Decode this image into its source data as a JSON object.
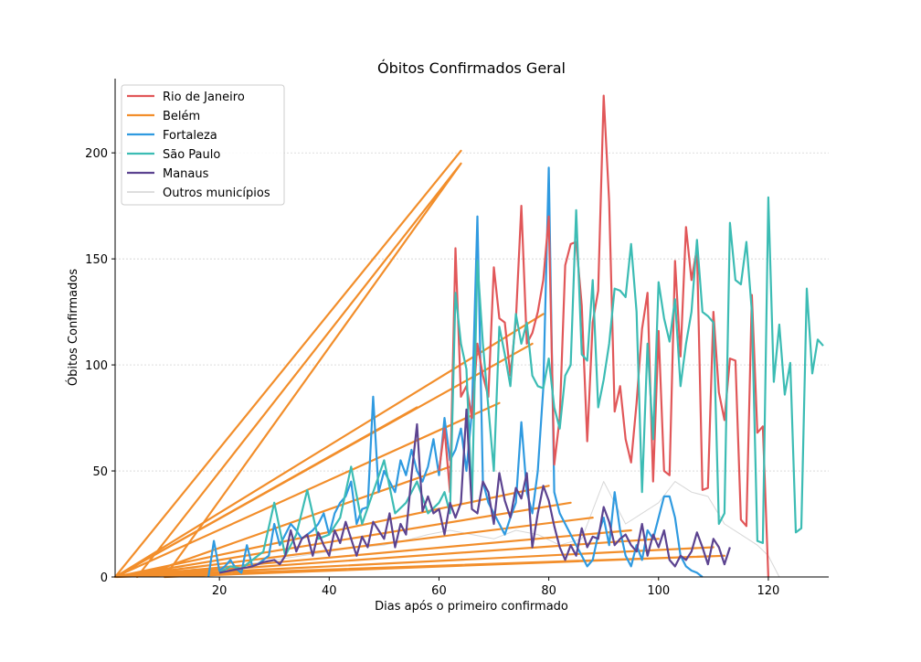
{
  "chart_data": {
    "type": "line",
    "title": "Óbitos Confirmados Geral",
    "xlabel": "Dias após o primeiro confirmado",
    "ylabel": "Óbitos Confirmados",
    "xlim": [
      1,
      131
    ],
    "ylim": [
      0,
      235
    ],
    "xticks": [
      20,
      40,
      60,
      80,
      100,
      120
    ],
    "yticks": [
      0,
      50,
      100,
      150,
      200
    ],
    "grid": "horizontal dotted",
    "legend_position": "top-left",
    "colors": {
      "Rio de Janeiro": "#e15759",
      "Belém": "#f28e2b",
      "Fortaleza": "#2f9ae0",
      "São Paulo": "#3cbcb4",
      "Manaus": "#5c4390",
      "Outros municípios": "#d3d3d3"
    },
    "legend": [
      "Rio de Janeiro",
      "Belém",
      "Fortaleza",
      "São Paulo",
      "Manaus",
      "Outros municípios"
    ],
    "series": [
      {
        "name": "Outros municípios",
        "x": [
          10,
          20,
          25,
          30,
          35,
          40,
          45,
          50,
          55,
          58,
          62,
          66,
          70,
          74,
          78,
          82,
          86,
          90,
          94,
          97,
          100,
          103,
          106,
          109,
          112,
          115,
          118,
          120,
          122
        ],
        "y": [
          5,
          3,
          6,
          8,
          10,
          12,
          14,
          15,
          18,
          20,
          22,
          20,
          18,
          22,
          20,
          15,
          18,
          45,
          25,
          30,
          35,
          45,
          40,
          38,
          25,
          20,
          15,
          10,
          0
        ]
      },
      {
        "name": "Rio de Janeiro",
        "x": [
          60,
          61,
          62,
          63,
          64,
          65,
          66,
          67,
          68,
          69,
          70,
          71,
          72,
          73,
          74,
          75,
          76,
          77,
          78,
          79,
          80,
          81,
          82,
          83,
          84,
          85,
          86,
          87,
          88,
          89,
          90,
          91,
          92,
          93,
          94,
          95,
          96,
          97,
          98,
          99,
          100,
          101,
          102,
          103,
          104,
          105,
          106,
          107,
          108,
          109,
          110,
          111,
          112,
          113,
          114,
          115,
          116,
          117,
          118,
          119,
          120
        ],
        "y": [
          50,
          70,
          40,
          155,
          85,
          90,
          75,
          110,
          95,
          85,
          146,
          122,
          120,
          95,
          121,
          175,
          110,
          115,
          125,
          140,
          170,
          53,
          75,
          147,
          157,
          158,
          128,
          64,
          120,
          135,
          227,
          177,
          78,
          90,
          65,
          54,
          82,
          117,
          134,
          45,
          116,
          50,
          48,
          149,
          104,
          165,
          140,
          155,
          41,
          42,
          125,
          87,
          74,
          103,
          102,
          27,
          24,
          133,
          68,
          71,
          0
        ]
      },
      {
        "name": "São Paulo",
        "x": [
          20,
          22,
          24,
          26,
          28,
          30,
          32,
          34,
          36,
          38,
          40,
          42,
          44,
          46,
          48,
          50,
          52,
          54,
          56,
          58,
          60,
          61,
          62,
          63,
          64,
          65,
          66,
          67,
          68,
          69,
          70,
          71,
          72,
          73,
          74,
          75,
          76,
          77,
          78,
          79,
          80,
          81,
          82,
          83,
          84,
          85,
          86,
          87,
          88,
          89,
          90,
          91,
          92,
          93,
          94,
          95,
          96,
          97,
          98,
          99,
          100,
          101,
          102,
          103,
          104,
          105,
          106,
          107,
          108,
          109,
          110,
          111,
          112,
          113,
          114,
          115,
          116,
          117,
          118,
          119,
          120,
          121,
          122,
          123,
          124,
          125,
          126,
          127,
          128,
          129,
          130
        ],
        "y": [
          2,
          5,
          4,
          8,
          12,
          35,
          10,
          20,
          41,
          18,
          20,
          28,
          52,
          25,
          40,
          55,
          30,
          35,
          45,
          30,
          35,
          40,
          30,
          134,
          110,
          98,
          35,
          149,
          110,
          80,
          50,
          118,
          105,
          90,
          124,
          110,
          120,
          95,
          90,
          89,
          103,
          80,
          70,
          95,
          100,
          173,
          105,
          102,
          140,
          80,
          93,
          110,
          136,
          135,
          132,
          157,
          125,
          40,
          110,
          65,
          139,
          122,
          111,
          131,
          90,
          110,
          125,
          159,
          125,
          123,
          120,
          25,
          30,
          167,
          140,
          138,
          158,
          125,
          17,
          16,
          179,
          92,
          119,
          86,
          101,
          21,
          23,
          136,
          96,
          112,
          109
        ]
      },
      {
        "name": "Fortaleza",
        "x": [
          18,
          19,
          20,
          21,
          22,
          23,
          24,
          25,
          26,
          27,
          28,
          29,
          30,
          31,
          32,
          33,
          34,
          35,
          36,
          37,
          38,
          39,
          40,
          41,
          42,
          43,
          44,
          45,
          46,
          47,
          48,
          49,
          50,
          51,
          52,
          53,
          54,
          55,
          56,
          57,
          58,
          59,
          60,
          61,
          62,
          63,
          64,
          65,
          66,
          67,
          68,
          69,
          70,
          71,
          72,
          73,
          74,
          75,
          76,
          77,
          78,
          79,
          80,
          81,
          82,
          83,
          84,
          85,
          86,
          87,
          88,
          89,
          90,
          91,
          92,
          93,
          94,
          95,
          96,
          97,
          98,
          99,
          100,
          101,
          102,
          103,
          104,
          105,
          106,
          107,
          108
        ],
        "y": [
          0,
          17,
          3,
          5,
          8,
          4,
          2,
          15,
          5,
          6,
          8,
          10,
          25,
          15,
          20,
          25,
          22,
          18,
          20,
          22,
          25,
          30,
          20,
          30,
          35,
          38,
          45,
          25,
          32,
          33,
          85,
          40,
          50,
          45,
          40,
          55,
          48,
          60,
          50,
          45,
          52,
          65,
          48,
          75,
          55,
          60,
          70,
          50,
          78,
          170,
          45,
          35,
          30,
          25,
          20,
          28,
          35,
          73,
          40,
          30,
          50,
          89,
          193,
          40,
          30,
          25,
          20,
          15,
          10,
          5,
          8,
          20,
          28,
          15,
          40,
          22,
          10,
          5,
          15,
          8,
          22,
          18,
          28,
          38,
          38,
          28,
          10,
          5,
          3,
          2,
          0
        ]
      },
      {
        "name": "Manaus",
        "x": [
          20,
          22,
          24,
          26,
          28,
          30,
          31,
          32,
          33,
          34,
          35,
          36,
          37,
          38,
          39,
          40,
          41,
          42,
          43,
          44,
          45,
          46,
          47,
          48,
          49,
          50,
          51,
          52,
          53,
          54,
          55,
          56,
          57,
          58,
          59,
          60,
          61,
          62,
          63,
          64,
          65,
          66,
          67,
          68,
          69,
          70,
          71,
          72,
          73,
          74,
          75,
          76,
          77,
          78,
          79,
          80,
          81,
          82,
          83,
          84,
          85,
          86,
          87,
          88,
          89,
          90,
          91,
          92,
          93,
          94,
          95,
          96,
          97,
          98,
          99,
          100,
          101,
          102,
          103,
          104,
          105,
          106,
          107,
          108,
          109,
          110,
          111,
          112,
          113
        ],
        "y": [
          2,
          3,
          4,
          5,
          7,
          8,
          6,
          10,
          22,
          12,
          18,
          20,
          10,
          21,
          15,
          10,
          22,
          16,
          26,
          18,
          10,
          19,
          14,
          26,
          22,
          18,
          30,
          14,
          25,
          20,
          48,
          72,
          31,
          38,
          30,
          32,
          20,
          35,
          28,
          35,
          79,
          32,
          30,
          45,
          40,
          25,
          49,
          36,
          28,
          42,
          37,
          49,
          14,
          30,
          43,
          36,
          24,
          14,
          8,
          15,
          10,
          23,
          14,
          19,
          18,
          33,
          26,
          15,
          18,
          20,
          15,
          12,
          25,
          10,
          20,
          14,
          22,
          8,
          5,
          10,
          8,
          12,
          21,
          14,
          6,
          18,
          14,
          6,
          14
        ]
      },
      {
        "name": "Belém",
        "x": [
          1,
          64,
          1,
          79,
          1,
          77,
          1,
          71,
          1,
          56,
          1,
          80,
          1,
          84,
          1,
          88,
          1,
          95,
          1,
          100,
          1,
          110,
          1,
          112,
          10,
          64,
          5,
          62
        ],
        "y": [
          0,
          201,
          0,
          124,
          0,
          110,
          0,
          82,
          0,
          80,
          0,
          43,
          0,
          35,
          0,
          28,
          0,
          22,
          0,
          18,
          0,
          14,
          0,
          10,
          0,
          195,
          0,
          52
        ]
      }
    ]
  }
}
